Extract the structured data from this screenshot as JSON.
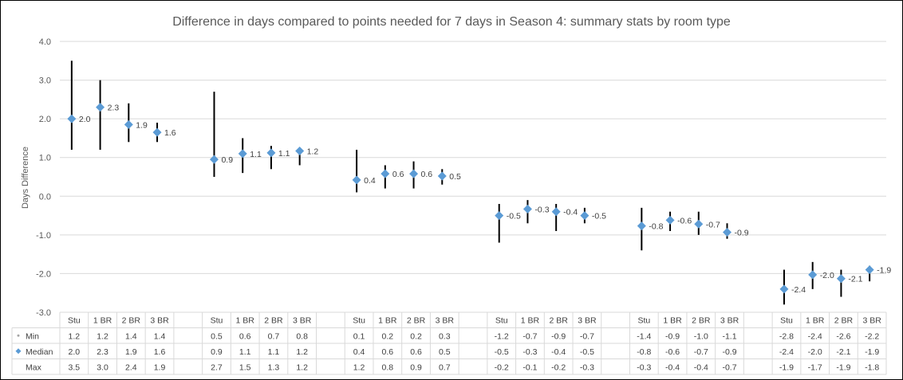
{
  "chart_data": {
    "type": "stock-hi-lo-median",
    "title": "Difference in days compared to points needed  for 7 days in Season 4: summary stats by room type",
    "ylabel": "Days Difference",
    "ylim": [
      -3.0,
      4.0
    ],
    "ytick_labels": [
      "4.0",
      "3.0",
      "2.0",
      "1.0",
      "0.0",
      "-1.0",
      "-2.0",
      "-3.0"
    ],
    "grid": true,
    "categories": [
      "Stu",
      "1 BR",
      "2 BR",
      "3 BR",
      "",
      "Stu",
      "1 BR",
      "2 BR",
      "3 BR",
      "",
      "Stu",
      "1 BR",
      "2 BR",
      "3 BR",
      "",
      "Stu",
      "1 BR",
      "2 BR",
      "3 BR",
      "",
      "Stu",
      "1 BR",
      "2 BR",
      "3 BR",
      "",
      "Stu",
      "1 BR",
      "2 BR",
      "3 BR"
    ],
    "series": [
      {
        "name": "Min",
        "values": [
          1.2,
          1.2,
          1.4,
          1.4,
          null,
          0.5,
          0.6,
          0.7,
          0.8,
          null,
          0.1,
          0.2,
          0.2,
          0.3,
          null,
          -1.2,
          -0.7,
          -0.9,
          -0.7,
          null,
          -1.4,
          -0.9,
          -1.0,
          -1.1,
          null,
          -2.8,
          -2.4,
          -2.6,
          -2.2
        ]
      },
      {
        "name": "Median",
        "values": [
          2.0,
          2.3,
          1.9,
          1.6,
          null,
          0.9,
          1.1,
          1.1,
          1.2,
          null,
          0.4,
          0.6,
          0.6,
          0.5,
          null,
          -0.5,
          -0.3,
          -0.4,
          -0.5,
          null,
          -0.8,
          -0.6,
          -0.7,
          -0.9,
          null,
          -2.4,
          -2.0,
          -2.1,
          -1.9
        ]
      },
      {
        "name": "Max",
        "values": [
          3.5,
          3.0,
          2.4,
          1.9,
          null,
          2.7,
          1.5,
          1.3,
          1.2,
          null,
          1.2,
          0.8,
          0.9,
          0.7,
          null,
          -0.2,
          -0.1,
          -0.2,
          -0.3,
          null,
          -0.3,
          -0.4,
          -0.4,
          -0.7,
          null,
          -1.9,
          -1.7,
          -1.9,
          -1.8
        ]
      }
    ],
    "median_plot_values": [
      2.0,
      2.3,
      1.85,
      1.65,
      null,
      0.95,
      1.1,
      1.12,
      1.17,
      null,
      0.42,
      0.58,
      0.58,
      0.52,
      null,
      -0.5,
      -0.33,
      -0.4,
      -0.5,
      null,
      -0.77,
      -0.62,
      -0.72,
      -0.93,
      null,
      -2.4,
      -2.03,
      -2.13,
      -1.9
    ],
    "colors": {
      "median_marker": "#5B9BD5",
      "range_line": "#000000",
      "grid": "#D9D9D9",
      "text": "#595959",
      "legend_min": "#A5A5A5"
    }
  }
}
